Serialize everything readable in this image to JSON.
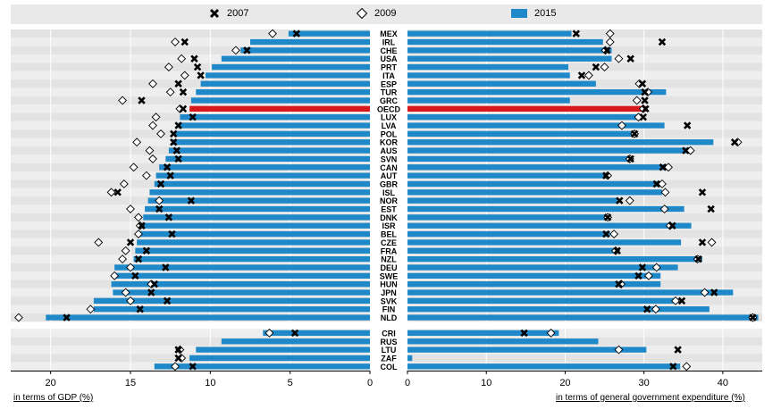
{
  "chart_data": {
    "type": "bar",
    "legend": [
      {
        "key": "2007",
        "label": "2007",
        "symbol": "x-marker",
        "color": "#000000"
      },
      {
        "key": "2009",
        "label": "2009",
        "symbol": "diamond-marker",
        "color": "#ffffff"
      },
      {
        "key": "2015",
        "label": "2015",
        "symbol": "bar",
        "color": "#1e88c8"
      }
    ],
    "highlight_color": "#d7191c",
    "countries": [
      "MEX",
      "IRL",
      "CHE",
      "USA",
      "PRT",
      "ITA",
      "ESP",
      "TUR",
      "GRC",
      "OECD",
      "LUX",
      "LVA",
      "POL",
      "KOR",
      "AUS",
      "SVN",
      "CAN",
      "AUT",
      "GBR",
      "ISL",
      "NOR",
      "EST",
      "DNK",
      "ISR",
      "BEL",
      "CZE",
      "FRA",
      "NZL",
      "DEU",
      "SWE",
      "HUN",
      "JPN",
      "SVK",
      "FIN",
      "NLD",
      "CRI",
      "RUS",
      "LTU",
      "ZAF",
      "COL"
    ],
    "highlight": [
      "OECD"
    ],
    "gap_before": [
      "CRI"
    ],
    "panels": [
      {
        "xlabel": "in terms of GDP (%)",
        "reversed": true,
        "xlim": [
          0,
          22.5
        ],
        "ticks": [
          0,
          5,
          10,
          15,
          20
        ],
        "series": {
          "2015": [
            5.1,
            7.5,
            8.1,
            9.3,
            9.9,
            10.3,
            10.6,
            10.9,
            11.2,
            11.3,
            11.9,
            12.0,
            12.2,
            12.4,
            12.6,
            12.8,
            13.2,
            13.4,
            13.5,
            13.8,
            13.9,
            14.1,
            14.2,
            14.4,
            14.4,
            14.6,
            14.7,
            14.8,
            16.0,
            16.0,
            16.2,
            16.1,
            17.3,
            17.3,
            20.3,
            6.7,
            9.3,
            10.9,
            11.3,
            13.5
          ],
          "2007": [
            4.6,
            11.6,
            7.7,
            11.0,
            10.8,
            10.6,
            12.0,
            11.7,
            14.3,
            11.7,
            11.1,
            12.0,
            12.3,
            12.3,
            12.1,
            12.0,
            12.7,
            12.5,
            13.1,
            15.8,
            11.2,
            13.2,
            12.6,
            14.3,
            12.4,
            15.0,
            14.0,
            14.5,
            12.8,
            14.7,
            13.5,
            13.7,
            12.7,
            14.4,
            19.0,
            4.7,
            null,
            12.0,
            12.0,
            11.1
          ],
          "2009": [
            6.1,
            12.2,
            8.4,
            11.8,
            12.6,
            11.6,
            13.6,
            12.5,
            15.5,
            11.9,
            13.4,
            13.6,
            13.1,
            14.6,
            13.8,
            13.6,
            14.8,
            14.0,
            15.4,
            16.2,
            13.2,
            15.0,
            14.5,
            14.4,
            14.5,
            17.0,
            15.3,
            15.5,
            15.0,
            16.0,
            13.7,
            15.3,
            15.0,
            17.5,
            22.0,
            6.3,
            null,
            11.9,
            11.8,
            12.2
          ]
        }
      },
      {
        "xlabel": "in terms of general government expenditure (%)",
        "reversed": false,
        "xlim": [
          0,
          45
        ],
        "ticks": [
          0,
          10,
          20,
          30,
          40
        ],
        "series": {
          "2015": [
            20.8,
            24.8,
            25.9,
            25.9,
            20.4,
            20.6,
            23.9,
            32.8,
            20.6,
            30.3,
            29.4,
            32.6,
            28.4,
            38.8,
            35.8,
            28.1,
            32.7,
            25.4,
            31.8,
            32.3,
            26.6,
            35.1,
            25.6,
            36.0,
            25.7,
            34.7,
            26.6,
            37.4,
            34.3,
            32.1,
            32.1,
            41.3,
            33.9,
            38.3,
            44.5,
            19.2,
            24.2,
            30.3,
            0.6,
            34.6
          ],
          "2007": [
            21.4,
            32.3,
            25.3,
            28.3,
            23.9,
            22.1,
            29.8,
            30.1,
            30.1,
            30.2,
            29.9,
            35.5,
            28.8,
            41.5,
            35.3,
            28.3,
            32.4,
            25.2,
            31.6,
            37.4,
            26.9,
            38.5,
            25.4,
            33.6,
            25.2,
            37.4,
            26.6,
            36.9,
            29.8,
            29.3,
            26.8,
            38.9,
            34.8,
            30.4,
            43.8,
            14.8,
            null,
            34.3,
            null,
            33.7
          ],
          "2009": [
            25.7,
            25.7,
            25.1,
            26.8,
            25.0,
            23.0,
            29.4,
            30.5,
            29.1,
            29.9,
            29.3,
            27.2,
            28.8,
            41.9,
            35.9,
            28.2,
            33.1,
            25.4,
            32.3,
            32.7,
            28.2,
            32.6,
            25.4,
            33.3,
            26.2,
            38.6,
            26.4,
            36.8,
            31.6,
            30.6,
            27.1,
            37.7,
            34.0,
            31.5,
            43.8,
            18.2,
            null,
            26.8,
            null,
            35.4
          ]
        }
      }
    ]
  }
}
